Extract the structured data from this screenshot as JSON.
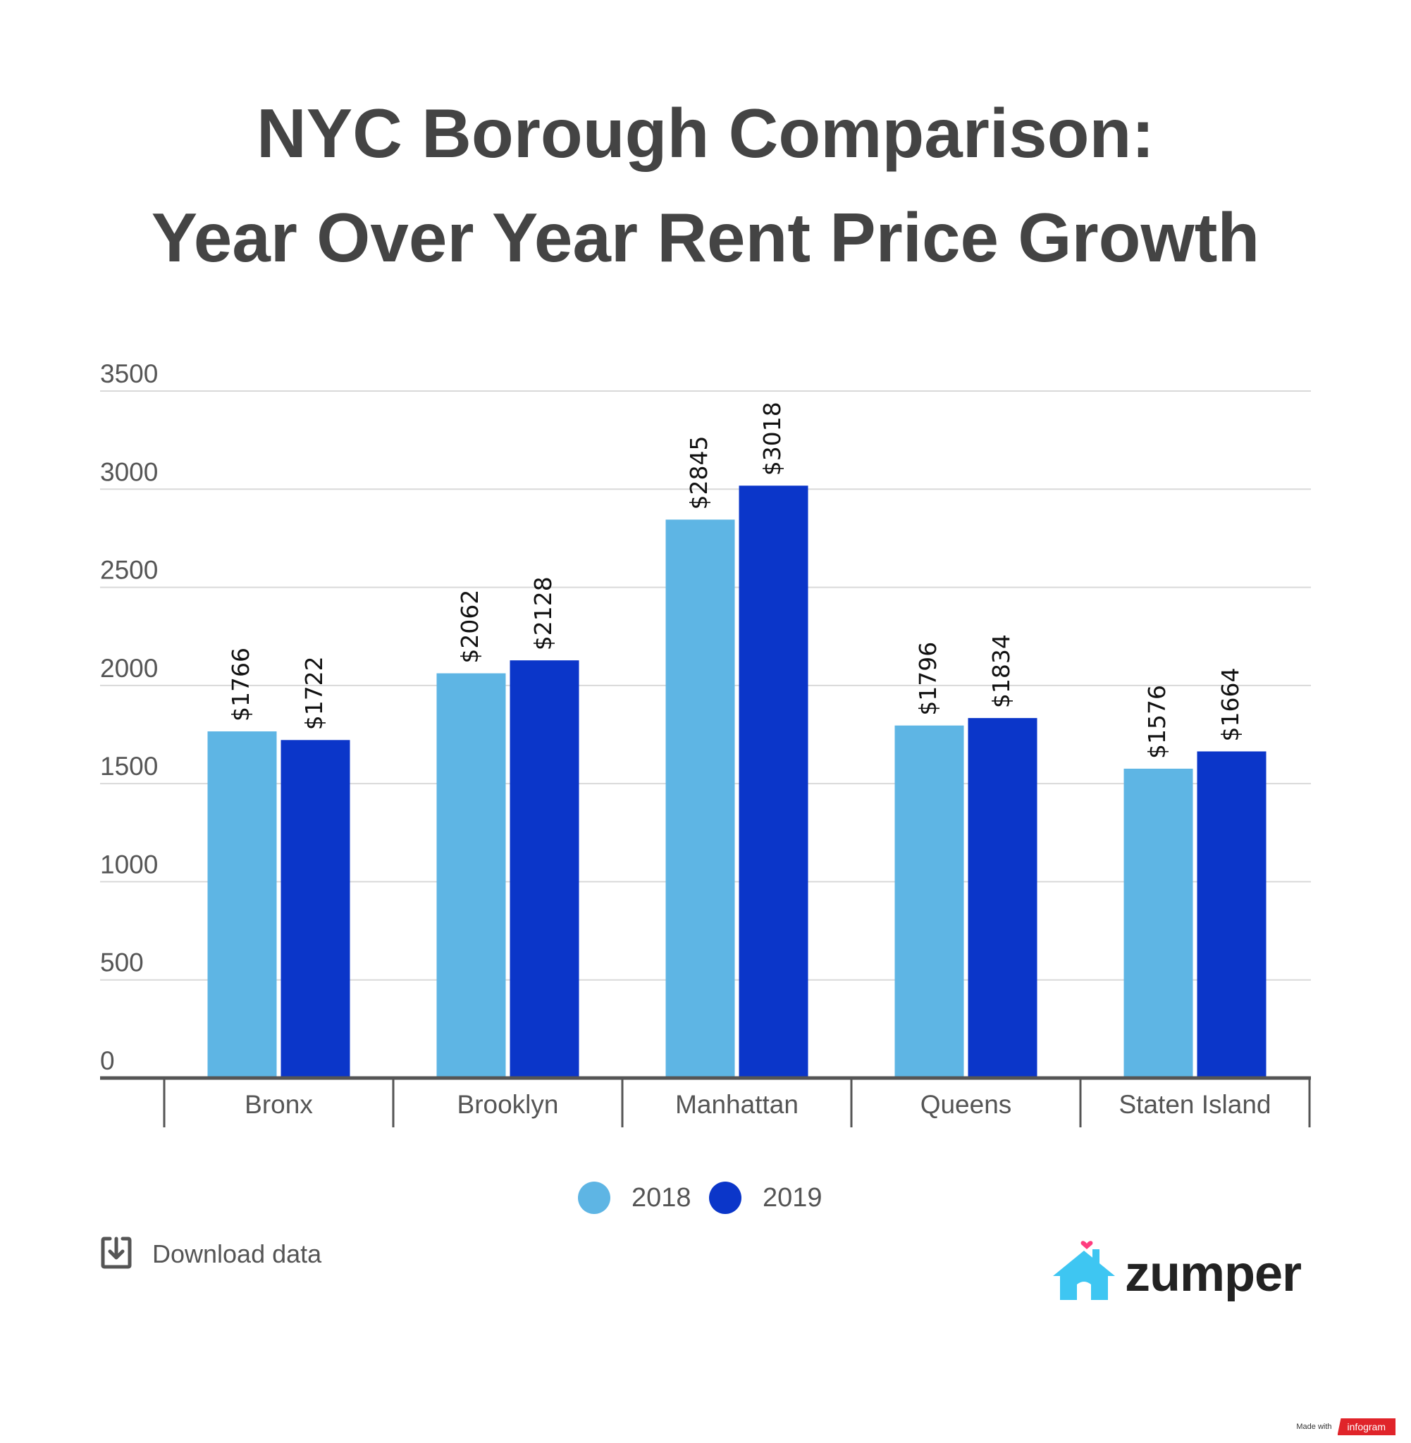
{
  "title_line1": "NYC Borough Comparison:",
  "title_line2": "Year Over Year Rent Price Growth",
  "chart_data": {
    "type": "bar",
    "title": "NYC Borough Comparison: Year Over Year Rent Price Growth",
    "categories": [
      "Bronx",
      "Brooklyn",
      "Manhattan",
      "Queens",
      "Staten Island"
    ],
    "series": [
      {
        "name": "2018",
        "color": "#5eb5e4",
        "values": [
          1766,
          2062,
          2845,
          1796,
          1576
        ],
        "labels": [
          "$1766",
          "$2062",
          "$2845",
          "$1796",
          "$1576"
        ]
      },
      {
        "name": "2019",
        "color": "#0b36c9",
        "values": [
          1722,
          2128,
          3018,
          1834,
          1664
        ],
        "labels": [
          "$1722",
          "$2128",
          "$3018",
          "$1834",
          "$1664"
        ]
      }
    ],
    "ylim": [
      0,
      3500
    ],
    "yticks": [
      "0",
      "500",
      "1000",
      "1500",
      "2000",
      "2500",
      "3000",
      "3500"
    ],
    "grid": true,
    "legend_position": "bottom-center"
  },
  "download_label": "Download data",
  "logo_text": "zumper",
  "footer": {
    "made_with": "Made with",
    "brand": "infogram"
  },
  "colors": {
    "title": "#444444",
    "grid": "#d9d9d9",
    "axis": "#555555",
    "logo_house": "#3ec6f2",
    "logo_heart": "#ff3d7f"
  }
}
